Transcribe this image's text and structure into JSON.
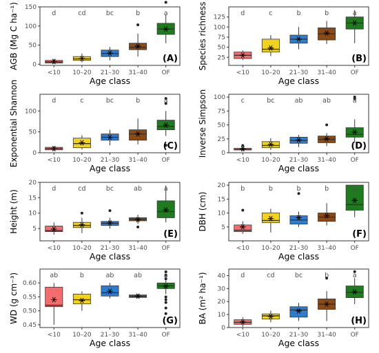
{
  "colors": {
    "<10": "#f46d6d",
    "10–20": "#f2d21c",
    "21–30": "#2f7ccf",
    "31–40": "#8b4a14",
    "OF": "#1e7c1e"
  },
  "chart_data": [
    {
      "type": "box",
      "panel_label": "(A)",
      "ylabel": "AGB (Mg C ha⁻¹)",
      "xlabel": "Age class",
      "categories": [
        "<10",
        "10–20",
        "21–30",
        "31–40",
        "OF"
      ],
      "ylim": [
        -3,
        150
      ],
      "yticks": [
        0,
        50,
        100,
        150
      ],
      "letters": [
        "d",
        "cd",
        "bc",
        "b",
        "a"
      ],
      "boxes": [
        {
          "min": 1,
          "q1": 3,
          "median": 6,
          "q3": 10,
          "max": 14,
          "mean": 7,
          "outliers": []
        },
        {
          "min": 5,
          "q1": 10,
          "median": 14,
          "q3": 20,
          "max": 28,
          "mean": 15,
          "outliers": []
        },
        {
          "min": 10,
          "q1": 20,
          "median": 28,
          "q3": 37,
          "max": 45,
          "mean": 29,
          "outliers": []
        },
        {
          "min": 20,
          "q1": 38,
          "median": 44,
          "q3": 55,
          "max": 80,
          "mean": 47,
          "outliers": [
            103
          ]
        },
        {
          "min": 55,
          "q1": 78,
          "median": 92,
          "q3": 107,
          "max": 130,
          "mean": 92,
          "outliers": [
            162
          ]
        }
      ]
    },
    {
      "type": "box",
      "panel_label": "(B)",
      "ylabel": "Species richness",
      "xlabel": "Age class",
      "categories": [
        "<10",
        "10–20",
        "21–30",
        "31–40",
        "OF"
      ],
      "ylim": [
        5,
        150
      ],
      "yticks": [
        25,
        50,
        75,
        100,
        125
      ],
      "letters": [
        "d",
        "c",
        "b",
        "b",
        "a"
      ],
      "boxes": [
        {
          "min": 18,
          "q1": 22,
          "median": 30,
          "q3": 38,
          "max": 42,
          "mean": 30,
          "outliers": []
        },
        {
          "min": 28,
          "q1": 38,
          "median": 45,
          "q3": 70,
          "max": 80,
          "mean": 48,
          "outliers": []
        },
        {
          "min": 45,
          "q1": 60,
          "median": 70,
          "q3": 80,
          "max": 100,
          "mean": 70,
          "outliers": []
        },
        {
          "min": 58,
          "q1": 68,
          "median": 83,
          "q3": 98,
          "max": 115,
          "mean": 85,
          "outliers": []
        },
        {
          "min": 60,
          "q1": 95,
          "median": 110,
          "q3": 125,
          "max": 142,
          "mean": 110,
          "outliers": []
        }
      ]
    },
    {
      "type": "box",
      "panel_label": "(C)",
      "ylabel": "Exponential Shannon",
      "xlabel": "Age class",
      "categories": [
        "<10",
        "10–20",
        "21–30",
        "31–40",
        "OF"
      ],
      "ylim": [
        0,
        140
      ],
      "yticks": [
        0,
        50,
        100
      ],
      "letters": [
        "d",
        "c",
        "bc",
        "b",
        "a"
      ],
      "boxes": [
        {
          "min": 4,
          "q1": 7,
          "median": 10,
          "q3": 13,
          "max": 16,
          "mean": 10,
          "outliers": []
        },
        {
          "min": 8,
          "q1": 12,
          "median": 22,
          "q3": 35,
          "max": 42,
          "mean": 24,
          "outliers": []
        },
        {
          "min": 18,
          "q1": 30,
          "median": 37,
          "q3": 45,
          "max": 55,
          "mean": 37,
          "outliers": []
        },
        {
          "min": 20,
          "q1": 30,
          "median": 45,
          "q3": 55,
          "max": 82,
          "mean": 45,
          "outliers": []
        },
        {
          "min": 40,
          "q1": 55,
          "median": 63,
          "q3": 78,
          "max": 100,
          "mean": 66,
          "outliers": [
            130,
            118,
            18
          ]
        }
      ]
    },
    {
      "type": "box",
      "panel_label": "(D)",
      "ylabel": "Inverse Simpson",
      "xlabel": "Age class",
      "categories": [
        "<10",
        "10–20",
        "21–30",
        "31–40",
        "OF"
      ],
      "ylim": [
        0,
        105
      ],
      "yticks": [
        0,
        25,
        50,
        75,
        100
      ],
      "letters": [
        "c",
        "bc",
        "ab",
        "ab",
        "a"
      ],
      "boxes": [
        {
          "min": 3,
          "q1": 5,
          "median": 6,
          "q3": 8,
          "max": 10,
          "mean": 7,
          "outliers": [
            13
          ]
        },
        {
          "min": 5,
          "q1": 9,
          "median": 13,
          "q3": 20,
          "max": 26,
          "mean": 15,
          "outliers": []
        },
        {
          "min": 10,
          "q1": 17,
          "median": 22,
          "q3": 28,
          "max": 32,
          "mean": 23,
          "outliers": []
        },
        {
          "min": 12,
          "q1": 18,
          "median": 24,
          "q3": 30,
          "max": 35,
          "mean": 25,
          "outliers": [
            50
          ]
        },
        {
          "min": 18,
          "q1": 28,
          "median": 33,
          "q3": 45,
          "max": 60,
          "mean": 37,
          "outliers": [
            100,
            97
          ]
        }
      ]
    },
    {
      "type": "box",
      "panel_label": "(E)",
      "ylabel": "Height (m)",
      "xlabel": "Age class",
      "categories": [
        "<10",
        "10–20",
        "21–30",
        "31–40",
        "OF"
      ],
      "ylim": [
        1,
        20
      ],
      "yticks": [
        5,
        10,
        15,
        20
      ],
      "letters": [
        "d",
        "cd",
        "bc",
        "ab",
        "a"
      ],
      "boxes": [
        {
          "min": 3,
          "q1": 4,
          "median": 4.3,
          "q3": 5.8,
          "max": 7,
          "mean": 4.8,
          "outliers": []
        },
        {
          "min": 3.5,
          "q1": 5.3,
          "median": 6,
          "q3": 7,
          "max": 8.5,
          "mean": 6.2,
          "outliers": [
            10
          ]
        },
        {
          "min": 5,
          "q1": 6,
          "median": 6.7,
          "q3": 7.3,
          "max": 8.5,
          "mean": 6.8,
          "outliers": [
            10.8
          ]
        },
        {
          "min": 6.5,
          "q1": 7.5,
          "median": 8,
          "q3": 8.5,
          "max": 9.5,
          "mean": 7.9,
          "outliers": [
            5.5
          ]
        },
        {
          "min": 7,
          "q1": 8.5,
          "median": 10.5,
          "q3": 14,
          "max": 19,
          "mean": 11,
          "outliers": []
        }
      ]
    },
    {
      "type": "box",
      "panel_label": "(F)",
      "ylabel": "DBH (cm)",
      "xlabel": "Age class",
      "categories": [
        "<10",
        "10–20",
        "21–30",
        "31–40",
        "OF"
      ],
      "ylim": [
        0,
        21
      ],
      "yticks": [
        5,
        10,
        15,
        20
      ],
      "letters": [
        "b",
        "b",
        "b",
        "b",
        "a"
      ],
      "boxes": [
        {
          "min": 2.5,
          "q1": 3.3,
          "median": 3.8,
          "q3": 5.7,
          "max": 7,
          "mean": 5,
          "outliers": [
            11
          ]
        },
        {
          "min": 3,
          "q1": 6.5,
          "median": 7.3,
          "q3": 10,
          "max": 11.5,
          "mean": 8,
          "outliers": []
        },
        {
          "min": 5,
          "q1": 6,
          "median": 7.5,
          "q3": 9,
          "max": 10.5,
          "mean": 8.3,
          "outliers": [
            17
          ]
        },
        {
          "min": 5.5,
          "q1": 7,
          "median": 8.5,
          "q3": 10,
          "max": 13.5,
          "mean": 9,
          "outliers": []
        },
        {
          "min": 8.5,
          "q1": 11,
          "median": 13,
          "q3": 20,
          "max": 20,
          "mean": 14.5,
          "outliers": []
        }
      ]
    },
    {
      "type": "box",
      "panel_label": "(G)",
      "ylabel": "WD (g cm⁻³)",
      "xlabel": "Age class",
      "categories": [
        "<10",
        "10–20",
        "21–30",
        "31–40",
        "OF"
      ],
      "ylim": [
        0.44,
        0.65
      ],
      "yticks": [
        0.45,
        0.5,
        0.55,
        0.6
      ],
      "ytick_labels": [
        "0.45",
        "0.50",
        "0.55",
        "0.60"
      ],
      "letters": [
        "ab",
        "b",
        "ab",
        "ab",
        "a"
      ],
      "boxes": [
        {
          "min": 0.45,
          "q1": 0.515,
          "median": 0.52,
          "q3": 0.585,
          "max": 0.6,
          "mean": 0.54,
          "outliers": []
        },
        {
          "min": 0.5,
          "q1": 0.525,
          "median": 0.54,
          "q3": 0.56,
          "max": 0.57,
          "mean": 0.537,
          "outliers": []
        },
        {
          "min": 0.545,
          "q1": 0.553,
          "median": 0.565,
          "q3": 0.59,
          "max": 0.6,
          "mean": 0.57,
          "outliers": []
        },
        {
          "min": 0.545,
          "q1": 0.548,
          "median": 0.552,
          "q3": 0.557,
          "max": 0.56,
          "mean": 0.553,
          "outliers": []
        },
        {
          "min": 0.56,
          "q1": 0.58,
          "median": 0.59,
          "q3": 0.6,
          "max": 0.615,
          "mean": 0.588,
          "outliers": [
            0.64,
            0.628,
            0.615,
            0.55,
            0.54,
            0.53,
            0.51,
            0.49
          ]
        }
      ]
    },
    {
      "type": "box",
      "panel_label": "(H)",
      "ylabel": "BA (m² ha⁻¹)",
      "xlabel": "Age class",
      "categories": [
        "<10",
        "10–20",
        "21–30",
        "31–40",
        "OF"
      ],
      "ylim": [
        0,
        45
      ],
      "yticks": [
        0,
        10,
        20,
        30,
        40
      ],
      "letters": [
        "d",
        "cd",
        "bc",
        "b",
        "a"
      ],
      "boxes": [
        {
          "min": 0.5,
          "q1": 2.5,
          "median": 4,
          "q3": 6,
          "max": 8,
          "mean": 4.3,
          "outliers": []
        },
        {
          "min": 4,
          "q1": 6.5,
          "median": 9,
          "q3": 10.5,
          "max": 13,
          "mean": 8.5,
          "outliers": []
        },
        {
          "min": 5,
          "q1": 8,
          "median": 13.5,
          "q3": 16,
          "max": 19,
          "mean": 12.8,
          "outliers": []
        },
        {
          "min": 5,
          "q1": 14,
          "median": 18,
          "q3": 22,
          "max": 28,
          "mean": 18,
          "outliers": [
            38
          ]
        },
        {
          "min": 18,
          "q1": 23,
          "median": 27,
          "q3": 32,
          "max": 38,
          "mean": 27.5,
          "outliers": [
            43
          ]
        }
      ]
    }
  ]
}
